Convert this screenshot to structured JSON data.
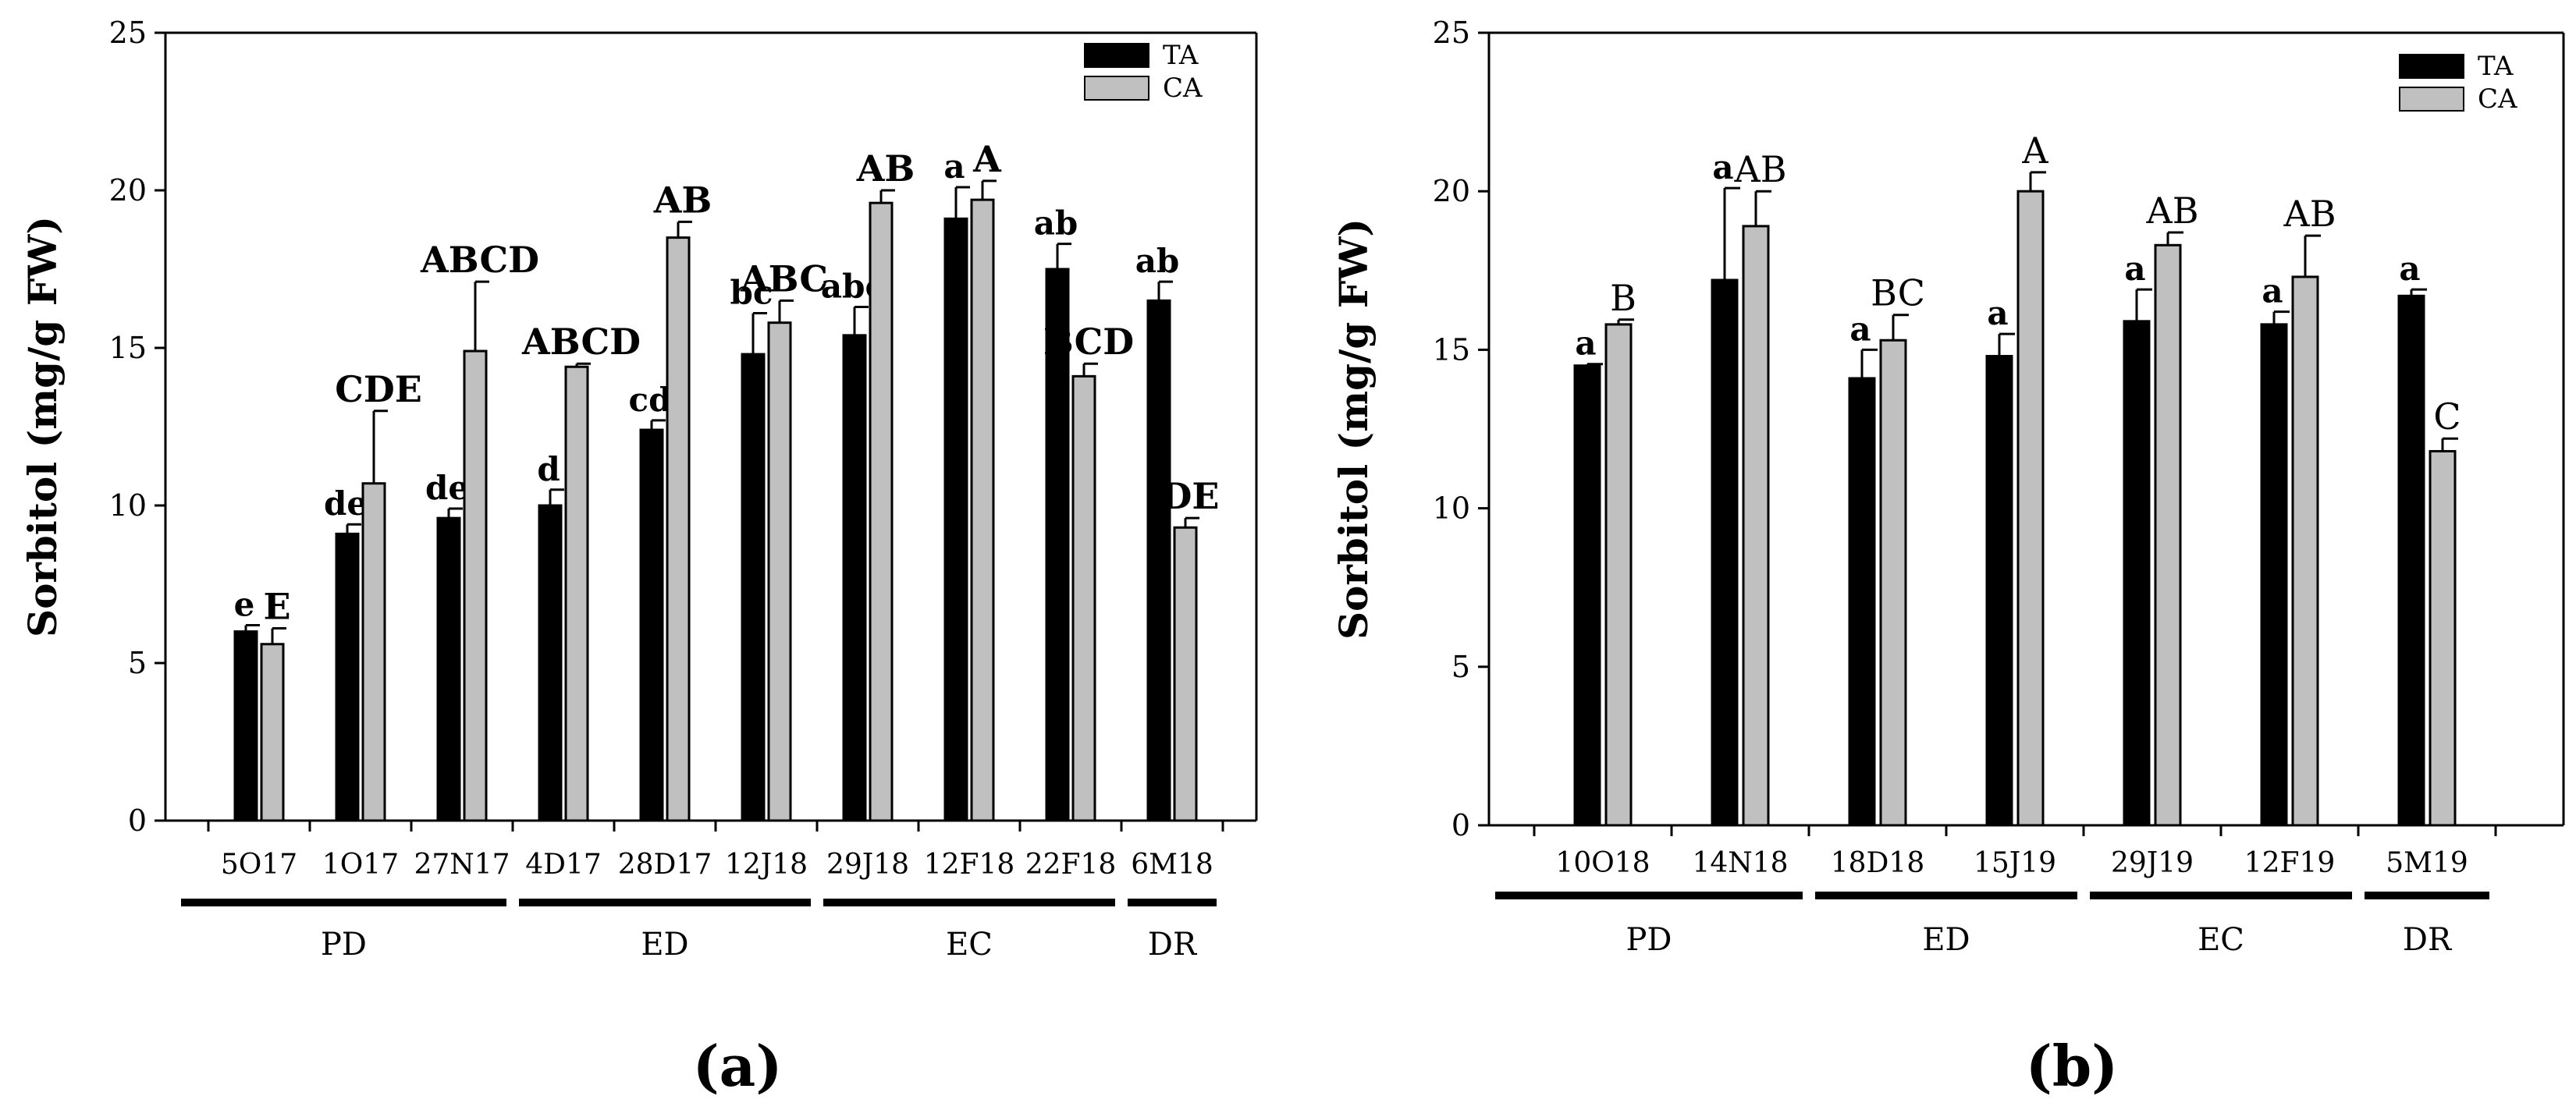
{
  "chart_data": [
    {
      "type": "bar",
      "panel_label": "(a)",
      "ylabel": "Sorbitol (mg/g FW)",
      "ylim": [
        0,
        25
      ],
      "yticks": [
        0,
        5,
        10,
        15,
        20,
        25
      ],
      "categories": [
        "5O17",
        "1O17",
        "27N17",
        "4D17",
        "28D17",
        "12J18",
        "29J18",
        "12F18",
        "22F18",
        "6M18"
      ],
      "series": [
        {
          "name": "TA",
          "color": "#000000",
          "values": [
            6.0,
            9.1,
            9.6,
            10.0,
            12.4,
            14.8,
            15.4,
            19.1,
            17.5,
            16.5
          ],
          "errors": [
            0.2,
            0.3,
            0.3,
            0.5,
            0.3,
            1.3,
            0.9,
            1.0,
            0.8,
            0.6
          ],
          "letters": [
            "e",
            "de",
            "de",
            "d",
            "cd",
            "bc",
            "abc",
            "a",
            "ab",
            "ab"
          ]
        },
        {
          "name": "CA",
          "color": "#c0c0c0",
          "values": [
            5.6,
            10.7,
            14.9,
            14.4,
            18.5,
            15.8,
            19.6,
            19.7,
            14.1,
            9.3
          ],
          "errors": [
            0.5,
            2.3,
            2.2,
            0.1,
            0.5,
            0.7,
            0.4,
            0.6,
            0.4,
            0.3
          ],
          "letters": [
            "E",
            "CDE",
            "ABCD",
            "ABCD",
            "AB",
            "ABC",
            "AB",
            "A",
            "BCD",
            "DE"
          ]
        }
      ],
      "groups": [
        {
          "label": "PD",
          "from": 0,
          "to": 2
        },
        {
          "label": "ED",
          "from": 3,
          "to": 5
        },
        {
          "label": "EC",
          "from": 6,
          "to": 8
        },
        {
          "label": "DR",
          "from": 9,
          "to": 9
        }
      ],
      "legend": "top-right"
    },
    {
      "type": "bar",
      "panel_label": "(b)",
      "ylabel": "Sorbitol (mg/g FW)",
      "ylim": [
        0,
        25
      ],
      "yticks": [
        0,
        5,
        10,
        15,
        20,
        25
      ],
      "categories": [
        "10O18",
        "14N18",
        "18D18",
        "15J19",
        "29J19",
        "12F19",
        "5M19"
      ],
      "series": [
        {
          "name": "TA",
          "color": "#000000",
          "values": [
            14.5,
            17.2,
            14.1,
            14.8,
            15.9,
            15.8,
            16.7
          ],
          "errors": [
            0.05,
            2.9,
            0.9,
            0.7,
            1.0,
            0.4,
            0.2
          ],
          "letters": [
            "a",
            "a",
            "a",
            "a",
            "a",
            "a",
            "a"
          ]
        },
        {
          "name": "CA",
          "color": "#c0c0c0",
          "values": [
            15.8,
            18.9,
            15.3,
            20.0,
            18.3,
            17.3,
            11.8
          ],
          "errors": [
            0.15,
            1.1,
            0.8,
            0.6,
            0.4,
            1.3,
            0.4
          ],
          "letters": [
            "B",
            "AB",
            "BC",
            "A",
            "AB",
            "AB",
            "C"
          ]
        }
      ],
      "groups": [
        {
          "label": "PD",
          "from": 0,
          "to": 1
        },
        {
          "label": "ED",
          "from": 2,
          "to": 3
        },
        {
          "label": "EC",
          "from": 4,
          "to": 5
        },
        {
          "label": "DR",
          "from": 6,
          "to": 6
        }
      ],
      "legend": "top-right"
    }
  ]
}
